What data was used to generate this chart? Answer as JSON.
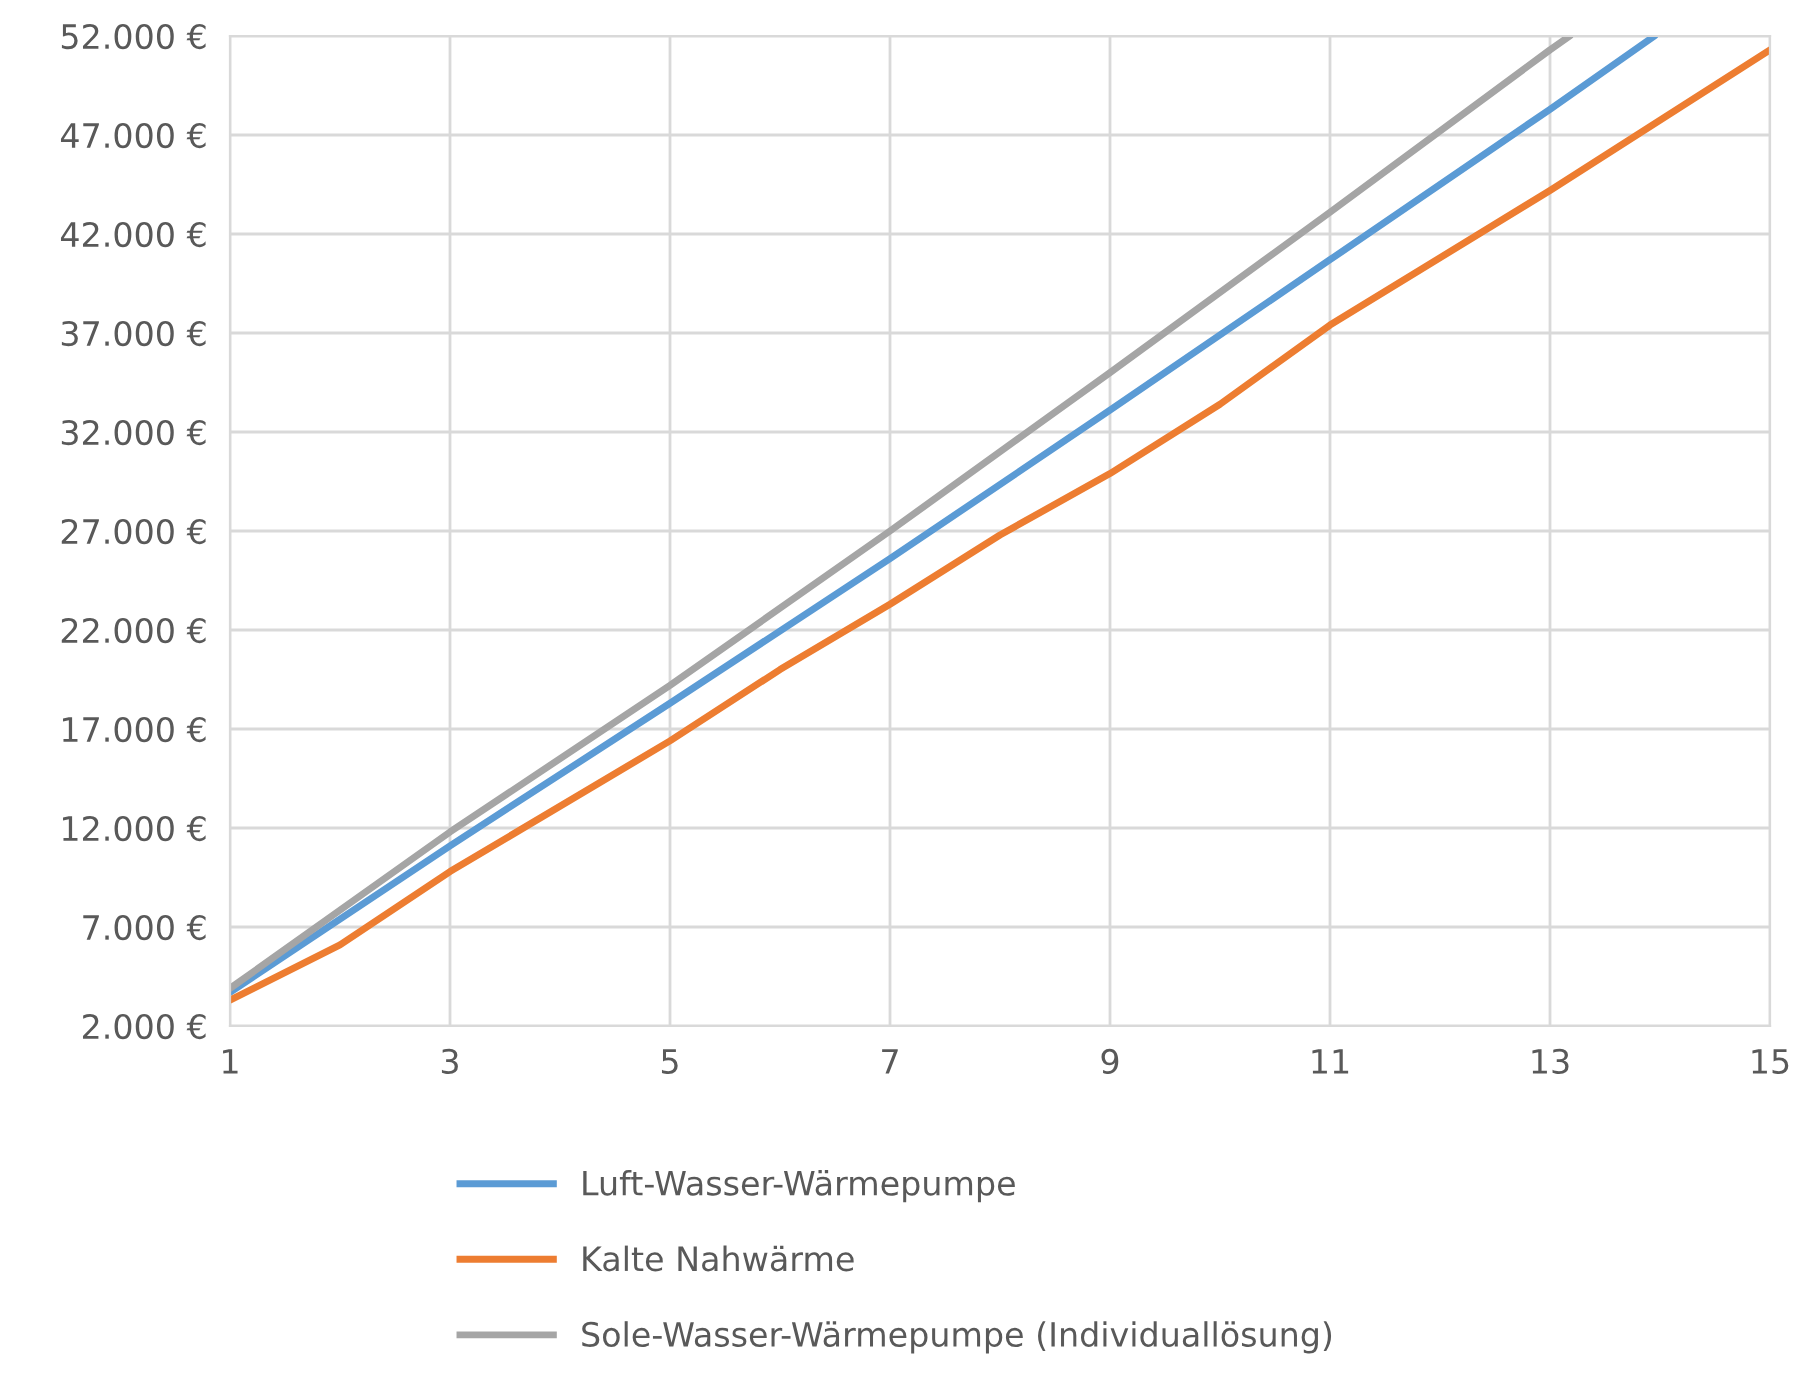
{
  "chart_data": {
    "type": "line",
    "xlim": [
      1,
      15
    ],
    "xticks": [
      1,
      3,
      5,
      7,
      9,
      11,
      13,
      15
    ],
    "ylim": [
      2000,
      52000
    ],
    "yticks": [
      {
        "value": 2000,
        "label": "2.000 €"
      },
      {
        "value": 7000,
        "label": "7.000 €"
      },
      {
        "value": 12000,
        "label": "12.000 €"
      },
      {
        "value": 17000,
        "label": "17.000 €"
      },
      {
        "value": 22000,
        "label": "22.000 €"
      },
      {
        "value": 27000,
        "label": "27.000 €"
      },
      {
        "value": 32000,
        "label": "32.000 €"
      },
      {
        "value": 37000,
        "label": "37.000 €"
      },
      {
        "value": 42000,
        "label": "42.000 €"
      },
      {
        "value": 47000,
        "label": "47.000 €"
      },
      {
        "value": 52000,
        "label": "52.000 €"
      }
    ],
    "grid": true,
    "legend": "bottom",
    "marker": "none",
    "line_style": "solid",
    "series": [
      {
        "name": "Luft-Wasser-Wärmepumpe",
        "color": "#5b9bd5",
        "x": [
          1,
          3,
          5,
          7,
          9,
          11,
          13,
          13.95
        ],
        "values": [
          3700,
          11100,
          18300,
          25600,
          33100,
          40700,
          48300,
          52000
        ]
      },
      {
        "name": "Kalte Nahwärme",
        "color": "#ed7d31",
        "x": [
          1,
          2,
          3,
          5,
          6,
          7,
          8,
          9,
          10,
          11,
          13,
          15
        ],
        "values": [
          3300,
          6100,
          9800,
          16400,
          20000,
          23300,
          26800,
          29900,
          33400,
          37400,
          44200,
          51300
        ]
      },
      {
        "name": "Sole-Wasser-Wärmepumpe (Individuallösung)",
        "color": "#a5a5a5",
        "x": [
          1,
          3,
          5,
          7,
          9,
          11,
          13,
          13.18
        ],
        "values": [
          3900,
          11800,
          19200,
          27000,
          35000,
          43100,
          51300,
          52000
        ]
      }
    ]
  }
}
